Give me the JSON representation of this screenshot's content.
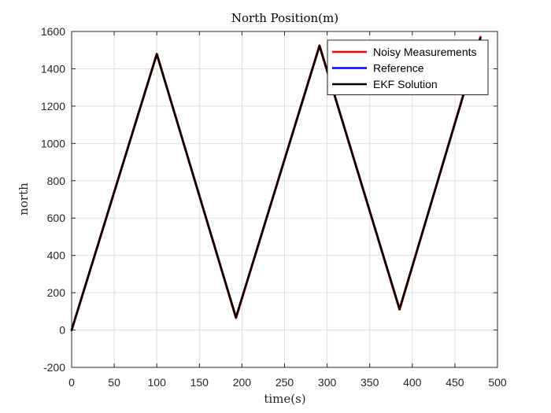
{
  "chart_data": {
    "type": "line",
    "title": "North Position(m)",
    "xlabel": "time(s)",
    "ylabel": "north",
    "xlim": [
      0,
      500
    ],
    "ylim": [
      -200,
      1600
    ],
    "xticks": [
      0,
      50,
      100,
      150,
      200,
      250,
      300,
      350,
      400,
      450,
      500
    ],
    "yticks": [
      -200,
      0,
      200,
      400,
      600,
      800,
      1000,
      1200,
      1400,
      1600
    ],
    "grid": true,
    "legend_position": "top-right",
    "series": [
      {
        "name": "Noisy Measurements",
        "color": "#ff0000",
        "x": [
          0,
          100,
          193,
          291,
          385,
          480
        ],
        "y": [
          0,
          1480,
          65,
          1525,
          110,
          1570
        ]
      },
      {
        "name": "Reference",
        "color": "#0000ff",
        "x": [
          0,
          100,
          193,
          291,
          385,
          480
        ],
        "y": [
          0,
          1478,
          68,
          1522,
          113,
          1565
        ]
      },
      {
        "name": "EKF Solution",
        "color": "#000000",
        "x": [
          0,
          100,
          193,
          291,
          385,
          480
        ],
        "y": [
          0,
          1478,
          68,
          1522,
          113,
          1565
        ]
      }
    ]
  }
}
